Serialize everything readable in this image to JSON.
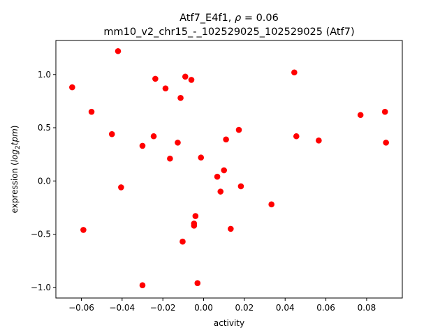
{
  "chart_data": {
    "type": "scatter",
    "title_prefix": "Atf7_E4f1, ",
    "title_rho_symbol": "ρ",
    "title_rho_value": " = 0.06",
    "subtitle": "mm10_v2_chr15_-_102529025_102529025 (Atf7)",
    "xlabel": "activity",
    "ylabel_prefix": "expression (",
    "ylabel_math": "log",
    "ylabel_sub": "2",
    "ylabel_math2": "tpm",
    "ylabel_suffix": ")",
    "xlim": [
      -0.0725,
      0.0975
    ],
    "ylim": [
      -1.1,
      1.32
    ],
    "x_ticks": [
      -0.06,
      -0.04,
      -0.02,
      0.0,
      0.02,
      0.04,
      0.06,
      0.08
    ],
    "x_tick_labels": [
      "−0.06",
      "−0.04",
      "−0.02",
      "0.00",
      "0.02",
      "0.04",
      "0.06",
      "0.08"
    ],
    "y_ticks": [
      -1.0,
      -0.5,
      0.0,
      0.5,
      1.0
    ],
    "y_tick_labels": [
      "−1.0",
      "−0.5",
      "0.0",
      "0.5",
      "1.0"
    ],
    "grid": false,
    "point_color": "#ff0000",
    "points": [
      {
        "x": -0.0645,
        "y": 0.88
      },
      {
        "x": -0.059,
        "y": -0.46
      },
      {
        "x": -0.055,
        "y": 0.65
      },
      {
        "x": -0.045,
        "y": 0.44
      },
      {
        "x": -0.042,
        "y": 1.22
      },
      {
        "x": -0.0405,
        "y": -0.06
      },
      {
        "x": -0.03,
        "y": 0.33
      },
      {
        "x": -0.03,
        "y": -0.98
      },
      {
        "x": -0.0245,
        "y": 0.42
      },
      {
        "x": -0.0237,
        "y": 0.96
      },
      {
        "x": -0.0187,
        "y": 0.87
      },
      {
        "x": -0.0165,
        "y": 0.21
      },
      {
        "x": -0.0127,
        "y": 0.36
      },
      {
        "x": -0.0113,
        "y": 0.78
      },
      {
        "x": -0.0103,
        "y": -0.57
      },
      {
        "x": -0.009,
        "y": 0.98
      },
      {
        "x": -0.006,
        "y": 0.95
      },
      {
        "x": -0.0047,
        "y": -0.4
      },
      {
        "x": -0.0047,
        "y": -0.42
      },
      {
        "x": -0.004,
        "y": -0.33
      },
      {
        "x": -0.003,
        "y": -0.96
      },
      {
        "x": -0.0013,
        "y": 0.22
      },
      {
        "x": 0.0067,
        "y": 0.04
      },
      {
        "x": 0.0083,
        "y": -0.1
      },
      {
        "x": 0.01,
        "y": 0.1
      },
      {
        "x": 0.011,
        "y": 0.39
      },
      {
        "x": 0.0133,
        "y": -0.45
      },
      {
        "x": 0.0173,
        "y": 0.48
      },
      {
        "x": 0.0183,
        "y": -0.05
      },
      {
        "x": 0.0333,
        "y": -0.22
      },
      {
        "x": 0.0445,
        "y": 1.02
      },
      {
        "x": 0.0455,
        "y": 0.42
      },
      {
        "x": 0.0565,
        "y": 0.38
      },
      {
        "x": 0.077,
        "y": 0.62
      },
      {
        "x": 0.089,
        "y": 0.65
      },
      {
        "x": 0.0895,
        "y": 0.36
      }
    ]
  }
}
